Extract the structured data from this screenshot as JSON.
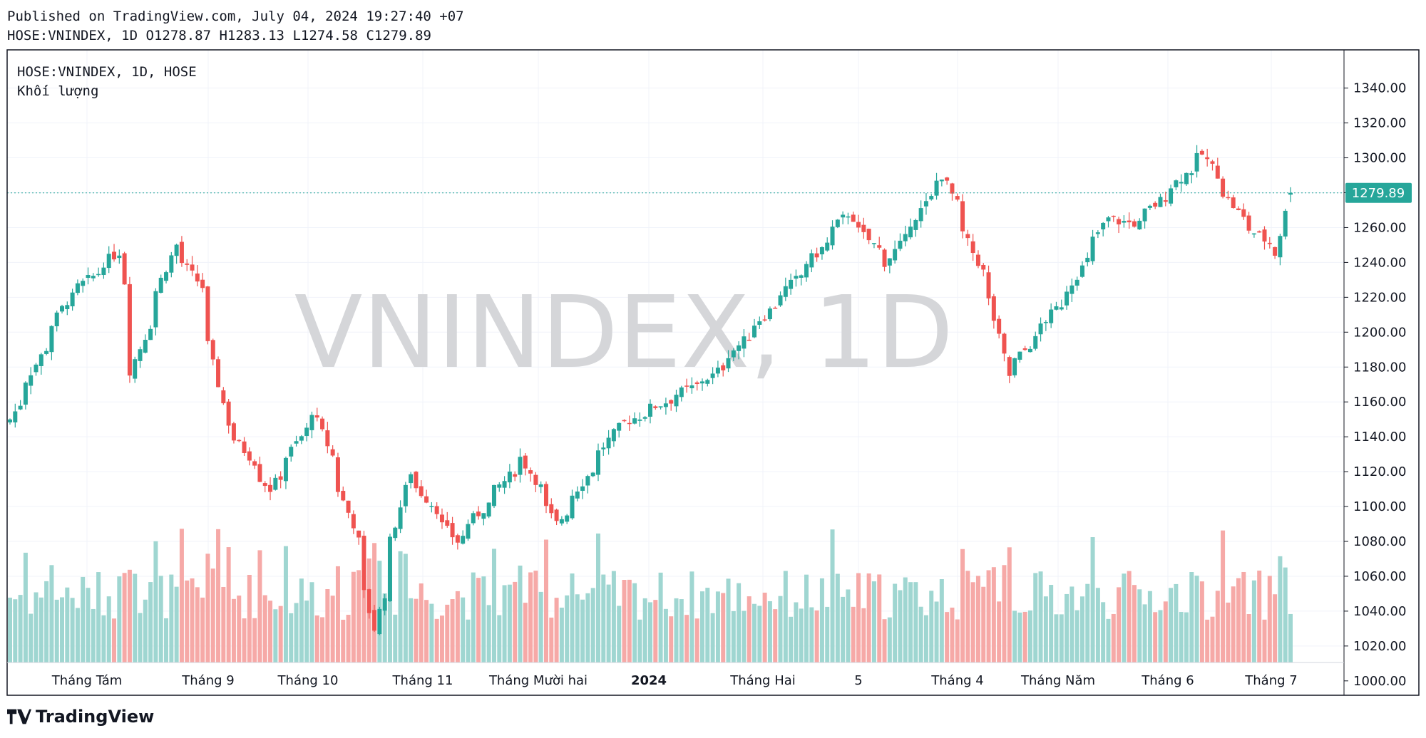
{
  "header": {
    "published": "Published on TradingView.com, July 04, 2024 19:27:40 +07",
    "symbol_line": "HOSE:VNINDEX, 1D",
    "ohlc": {
      "O_label": "O",
      "O": "1278.87",
      "H_label": "H",
      "H": "1283.13",
      "L_label": "L",
      "L": "1274.58",
      "C_label": "C",
      "C": "1279.89"
    }
  },
  "legend": {
    "line1": "HOSE:VNINDEX, 1D, HOSE",
    "line2": "Khối lượng"
  },
  "watermark": "VNINDEX, 1D",
  "brand": {
    "name": "TradingView",
    "icon": "tradingview-logo-icon"
  },
  "colors": {
    "up": "#26a69a",
    "down": "#ef5350",
    "vol_up": "#9fd6d1",
    "vol_down": "#f6a9a7",
    "grid": "#f0f3fa",
    "last_price_bg": "#26a69a",
    "watermark": "#d5d6d9"
  },
  "chart_data": {
    "type": "candlestick",
    "title": "HOSE:VNINDEX, 1D, HOSE",
    "y_axis": {
      "ticks": [
        1000,
        1020,
        1040,
        1060,
        1080,
        1100,
        1120,
        1140,
        1160,
        1180,
        1200,
        1220,
        1240,
        1260,
        1280,
        1300,
        1320,
        1340
      ],
      "range": [
        990,
        1341
      ],
      "position": "right"
    },
    "x_axis": {
      "labels": [
        "Tháng Tám",
        "Tháng 9",
        "Tháng 10",
        "Tháng 11",
        "Tháng Mười hai",
        "2024",
        "Tháng Hai",
        "5",
        "Tháng 4",
        "Tháng Năm",
        "Tháng 6",
        "Tháng 7"
      ],
      "bold_label": "2024"
    },
    "last_price": 1279.89,
    "last_price_label": "1279.89",
    "key_closes": [
      {
        "date": "2023-07-26",
        "close": 1150
      },
      {
        "date": "2023-08-10",
        "close": 1218
      },
      {
        "date": "2023-08-24",
        "close": 1246
      },
      {
        "date": "2023-08-28",
        "close": 1178
      },
      {
        "date": "2023-09-08",
        "close": 1250
      },
      {
        "date": "2023-09-15",
        "close": 1226
      },
      {
        "date": "2023-09-22",
        "close": 1148
      },
      {
        "date": "2023-10-04",
        "close": 1110
      },
      {
        "date": "2023-10-16",
        "close": 1155
      },
      {
        "date": "2023-10-26",
        "close": 1090
      },
      {
        "date": "2023-11-01",
        "close": 1030
      },
      {
        "date": "2023-11-10",
        "close": 1120
      },
      {
        "date": "2023-11-23",
        "close": 1080
      },
      {
        "date": "2023-12-11",
        "close": 1128
      },
      {
        "date": "2023-12-20",
        "close": 1090
      },
      {
        "date": "2024-01-05",
        "close": 1145
      },
      {
        "date": "2024-01-31",
        "close": 1175
      },
      {
        "date": "2024-02-28",
        "close": 1245
      },
      {
        "date": "2024-03-07",
        "close": 1268
      },
      {
        "date": "2024-03-18",
        "close": 1240
      },
      {
        "date": "2024-04-02",
        "close": 1290
      },
      {
        "date": "2024-04-15",
        "close": 1218
      },
      {
        "date": "2024-04-19",
        "close": 1175
      },
      {
        "date": "2024-05-06",
        "close": 1225
      },
      {
        "date": "2024-05-16",
        "close": 1265
      },
      {
        "date": "2024-05-24",
        "close": 1262
      },
      {
        "date": "2024-06-11",
        "close": 1302
      },
      {
        "date": "2024-06-21",
        "close": 1265
      },
      {
        "date": "2024-07-01",
        "close": 1245
      },
      {
        "date": "2024-07-04",
        "close": 1279.89
      }
    ]
  }
}
